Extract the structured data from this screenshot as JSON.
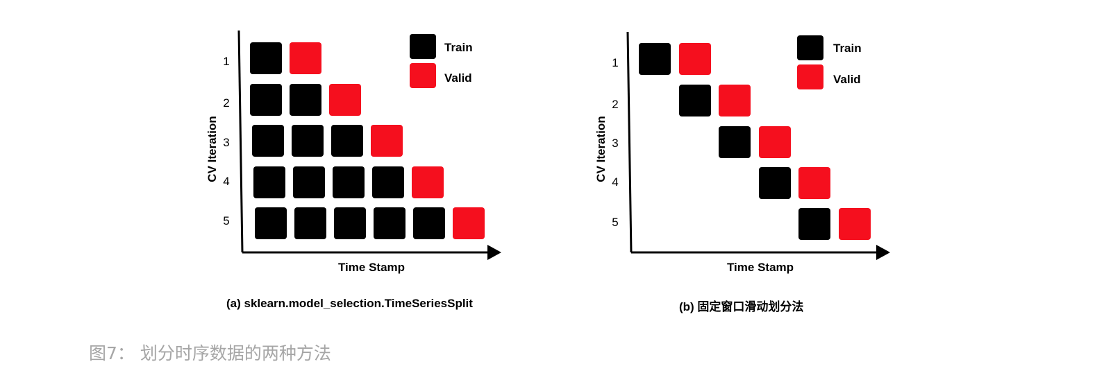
{
  "panels": [
    {
      "ylabel": "CV Iteration",
      "xlabel": "Time Stamp",
      "subcaption": "(a) sklearn.model_selection.TimeSeriesSplit",
      "legend": [
        {
          "label": "Train",
          "color": "#000000"
        },
        {
          "label": "Valid",
          "color": "#f50f1e"
        }
      ],
      "rows": [
        {
          "label": "1",
          "train": [
            0
          ],
          "valid": [
            1
          ]
        },
        {
          "label": "2",
          "train": [
            0,
            1
          ],
          "valid": [
            2
          ]
        },
        {
          "label": "3",
          "train": [
            0,
            1,
            2
          ],
          "valid": [
            3
          ]
        },
        {
          "label": "4",
          "train": [
            0,
            1,
            2,
            3
          ],
          "valid": [
            4
          ]
        },
        {
          "label": "5",
          "train": [
            0,
            1,
            2,
            3,
            4
          ],
          "valid": [
            5
          ]
        }
      ]
    },
    {
      "ylabel": "CV Iteration",
      "xlabel": "Time Stamp",
      "subcaption": "(b) 固定窗口滑动划分法",
      "legend": [
        {
          "label": "Train",
          "color": "#000000"
        },
        {
          "label": "Valid",
          "color": "#f50f1e"
        }
      ],
      "rows": [
        {
          "label": "1",
          "train": [
            0
          ],
          "valid": [
            1
          ]
        },
        {
          "label": "2",
          "train": [
            1
          ],
          "valid": [
            2
          ]
        },
        {
          "label": "3",
          "train": [
            2
          ],
          "valid": [
            3
          ]
        },
        {
          "label": "4",
          "train": [
            3
          ],
          "valid": [
            4
          ]
        },
        {
          "label": "5",
          "train": [
            4
          ],
          "valid": [
            5
          ]
        }
      ]
    }
  ],
  "caption": "图7： 划分时序数据的两种方法"
}
